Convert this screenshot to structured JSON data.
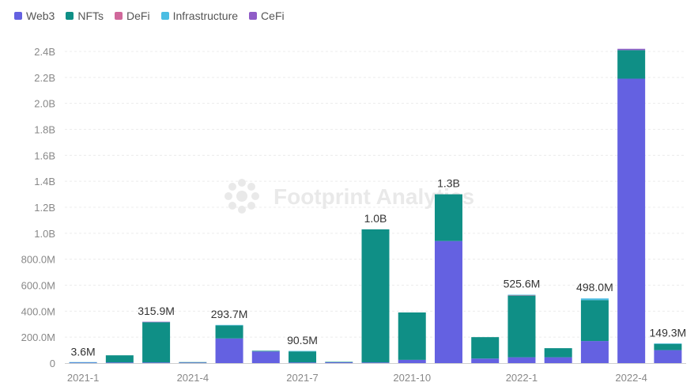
{
  "legend": [
    {
      "name": "Web3",
      "color": "#6461e1"
    },
    {
      "name": "NFTs",
      "color": "#0f8f86"
    },
    {
      "name": "DeFi",
      "color": "#d0689b"
    },
    {
      "name": "Infrastructure",
      "color": "#4bbde3"
    },
    {
      "name": "CeFi",
      "color": "#8f5cc7"
    }
  ],
  "watermark": "Footprint Analytics",
  "chart_data": {
    "type": "bar",
    "stacked": true,
    "categories": [
      "2021-1",
      "2021-2",
      "2021-3",
      "2021-4",
      "2021-5",
      "2021-6",
      "2021-7",
      "2021-8",
      "2021-9",
      "2021-10",
      "2021-11",
      "2021-12",
      "2022-1",
      "2022-2",
      "2022-3",
      "2022-4",
      "2022-5"
    ],
    "x_tick_labels": [
      "2021-1",
      "2021-4",
      "2021-7",
      "2021-10",
      "2022-1",
      "2022-4"
    ],
    "y_tick_labels": [
      "0",
      "200.0M",
      "400.0M",
      "600.0M",
      "800.0M",
      "1.0B",
      "1.2B",
      "1.4B",
      "1.6B",
      "1.8B",
      "2.0B",
      "2.2B",
      "2.4B"
    ],
    "ylim": [
      0,
      2400000000
    ],
    "series": [
      {
        "name": "Web3",
        "values": [
          3000000,
          5000000,
          5000000,
          4000000,
          190000000,
          90000000,
          5000000,
          6000000,
          5000000,
          25000000,
          940000000,
          35000000,
          45000000,
          45000000,
          170000000,
          2190000000,
          100000000
        ]
      },
      {
        "name": "NFTs",
        "values": [
          500000,
          55000000,
          310000000,
          1000000,
          100000000,
          5000000,
          85000000,
          2000000,
          1025000000,
          365000000,
          360000000,
          165000000,
          475000000,
          70000000,
          315000000,
          220000000,
          48000000
        ]
      },
      {
        "name": "DeFi",
        "values": [
          0,
          0,
          0,
          0,
          0,
          0,
          0,
          0,
          0,
          0,
          0,
          0,
          3000000,
          0,
          0,
          0,
          0
        ]
      },
      {
        "name": "Infrastructure",
        "values": [
          100000,
          0,
          0,
          0,
          3700000,
          0,
          500000,
          0,
          0,
          0,
          0,
          0,
          2600000,
          0,
          13000000,
          0,
          1300000
        ]
      },
      {
        "name": "CeFi",
        "values": [
          0,
          0,
          900000,
          0,
          0,
          0,
          0,
          0,
          0,
          0,
          0,
          0,
          0,
          0,
          0,
          10000000,
          0
        ]
      }
    ],
    "data_labels": [
      {
        "category": "2021-1",
        "text": "3.6M"
      },
      {
        "category": "2021-3",
        "text": "315.9M"
      },
      {
        "category": "2021-5",
        "text": "293.7M"
      },
      {
        "category": "2021-7",
        "text": "90.5M"
      },
      {
        "category": "2021-9",
        "text": "1.0B"
      },
      {
        "category": "2021-11",
        "text": "1.3B"
      },
      {
        "category": "2022-1",
        "text": "525.6M"
      },
      {
        "category": "2022-3",
        "text": "498.0M"
      },
      {
        "category": "2022-5",
        "text": "149.3M"
      }
    ],
    "grid": true,
    "legend_position": "top-left"
  }
}
